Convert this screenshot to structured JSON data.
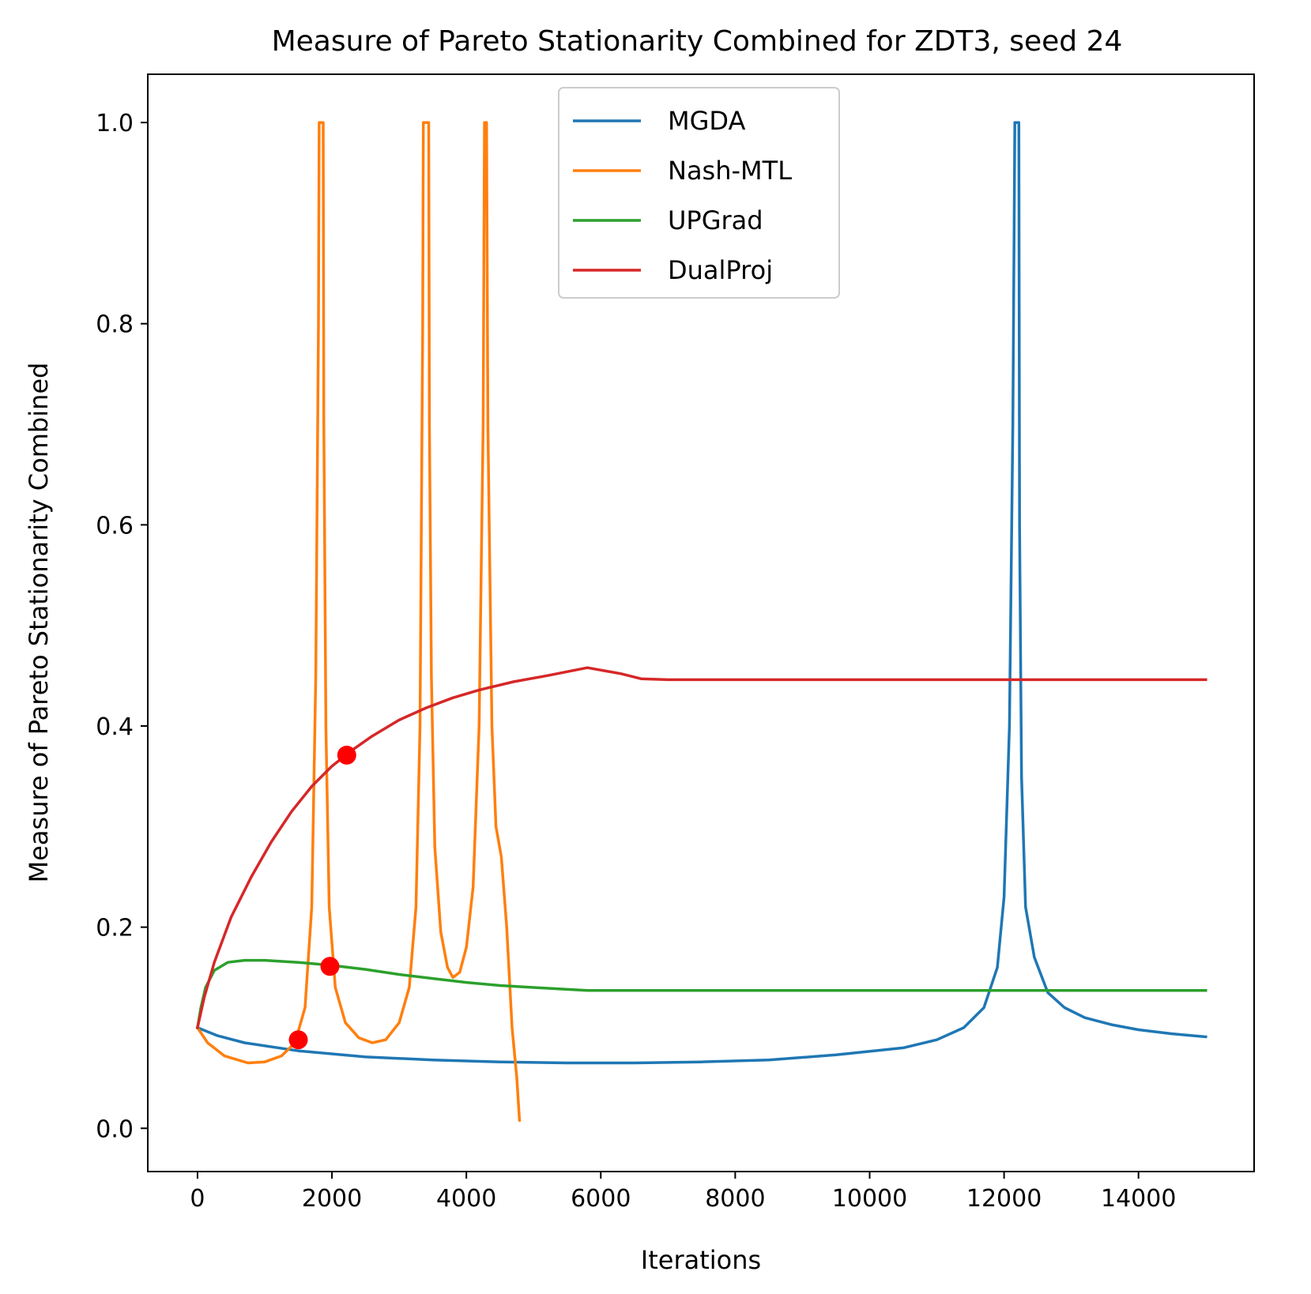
{
  "chart_data": {
    "type": "line",
    "title": "Measure of Pareto Stationarity Combined for ZDT3, seed 24",
    "xlabel": "Iterations",
    "ylabel": "Measure of Pareto Stationarity Combined",
    "xlim": [
      -740,
      15720
    ],
    "ylim": [
      -0.043,
      1.048
    ],
    "xticks": [
      0,
      2000,
      4000,
      6000,
      8000,
      10000,
      12000,
      14000
    ],
    "xtick_labels": [
      "0",
      "2000",
      "4000",
      "6000",
      "8000",
      "10000",
      "12000",
      "14000"
    ],
    "yticks": [
      0.0,
      0.2,
      0.4,
      0.6,
      0.8,
      1.0
    ],
    "ytick_labels": [
      "0.0",
      "0.2",
      "0.4",
      "0.6",
      "0.8",
      "1.0"
    ],
    "grid": false,
    "legend_position": "upper center",
    "series": [
      {
        "name": "MGDA",
        "color": "#1f77b4",
        "points": [
          [
            0,
            0.1
          ],
          [
            300,
            0.092
          ],
          [
            700,
            0.085
          ],
          [
            1500,
            0.077
          ],
          [
            2500,
            0.071
          ],
          [
            3500,
            0.068
          ],
          [
            4500,
            0.066
          ],
          [
            5500,
            0.065
          ],
          [
            6500,
            0.065
          ],
          [
            7500,
            0.066
          ],
          [
            8500,
            0.068
          ],
          [
            9500,
            0.073
          ],
          [
            10500,
            0.08
          ],
          [
            11000,
            0.088
          ],
          [
            11400,
            0.1
          ],
          [
            11700,
            0.12
          ],
          [
            11900,
            0.16
          ],
          [
            12000,
            0.23
          ],
          [
            12080,
            0.4
          ],
          [
            12130,
            0.7
          ],
          [
            12160,
            1.0
          ],
          [
            12220,
            1.0
          ],
          [
            12230,
            0.6
          ],
          [
            12260,
            0.35
          ],
          [
            12320,
            0.22
          ],
          [
            12450,
            0.17
          ],
          [
            12650,
            0.135
          ],
          [
            12900,
            0.12
          ],
          [
            13200,
            0.11
          ],
          [
            13600,
            0.103
          ],
          [
            14000,
            0.098
          ],
          [
            14500,
            0.094
          ],
          [
            15000,
            0.091
          ]
        ]
      },
      {
        "name": "Nash-MTL",
        "color": "#ff7f0e",
        "points": [
          [
            0,
            0.1
          ],
          [
            150,
            0.085
          ],
          [
            400,
            0.072
          ],
          [
            750,
            0.065
          ],
          [
            1000,
            0.066
          ],
          [
            1250,
            0.072
          ],
          [
            1450,
            0.085
          ],
          [
            1600,
            0.12
          ],
          [
            1700,
            0.22
          ],
          [
            1760,
            0.45
          ],
          [
            1800,
            0.8
          ],
          [
            1810,
            1.0
          ],
          [
            1870,
            1.0
          ],
          [
            1880,
            0.7
          ],
          [
            1910,
            0.4
          ],
          [
            1960,
            0.22
          ],
          [
            2050,
            0.14
          ],
          [
            2200,
            0.105
          ],
          [
            2400,
            0.09
          ],
          [
            2600,
            0.085
          ],
          [
            2800,
            0.088
          ],
          [
            3000,
            0.105
          ],
          [
            3150,
            0.14
          ],
          [
            3250,
            0.22
          ],
          [
            3310,
            0.4
          ],
          [
            3350,
            0.8
          ],
          [
            3360,
            1.0
          ],
          [
            3440,
            1.0
          ],
          [
            3450,
            0.7
          ],
          [
            3480,
            0.45
          ],
          [
            3530,
            0.28
          ],
          [
            3620,
            0.195
          ],
          [
            3720,
            0.16
          ],
          [
            3800,
            0.15
          ],
          [
            3900,
            0.155
          ],
          [
            4000,
            0.18
          ],
          [
            4100,
            0.24
          ],
          [
            4190,
            0.4
          ],
          [
            4250,
            0.7
          ],
          [
            4270,
            1.0
          ],
          [
            4300,
            1.0
          ],
          [
            4320,
            0.7
          ],
          [
            4380,
            0.4
          ],
          [
            4440,
            0.3
          ],
          [
            4520,
            0.27
          ],
          [
            4600,
            0.2
          ],
          [
            4680,
            0.1
          ],
          [
            4750,
            0.05
          ],
          [
            4790,
            0.008
          ]
        ]
      },
      {
        "name": "UPGrad",
        "color": "#2ca02c",
        "points": [
          [
            0,
            0.1
          ],
          [
            50,
            0.12
          ],
          [
            120,
            0.14
          ],
          [
            250,
            0.157
          ],
          [
            450,
            0.165
          ],
          [
            700,
            0.167
          ],
          [
            1000,
            0.167
          ],
          [
            1500,
            0.165
          ],
          [
            2000,
            0.162
          ],
          [
            2500,
            0.158
          ],
          [
            3000,
            0.153
          ],
          [
            3500,
            0.149
          ],
          [
            4000,
            0.145
          ],
          [
            4500,
            0.142
          ],
          [
            5000,
            0.14
          ],
          [
            5800,
            0.137
          ],
          [
            7000,
            0.137
          ],
          [
            8000,
            0.137
          ],
          [
            9000,
            0.137
          ],
          [
            10000,
            0.137
          ],
          [
            11000,
            0.137
          ],
          [
            12000,
            0.137
          ],
          [
            13000,
            0.137
          ],
          [
            14000,
            0.137
          ],
          [
            15000,
            0.137
          ]
        ]
      },
      {
        "name": "DualProj",
        "color": "#d62728",
        "points": [
          [
            0,
            0.1
          ],
          [
            100,
            0.13
          ],
          [
            250,
            0.165
          ],
          [
            500,
            0.21
          ],
          [
            800,
            0.25
          ],
          [
            1100,
            0.285
          ],
          [
            1400,
            0.315
          ],
          [
            1700,
            0.34
          ],
          [
            2000,
            0.36
          ],
          [
            2300,
            0.376
          ],
          [
            2600,
            0.39
          ],
          [
            3000,
            0.406
          ],
          [
            3400,
            0.418
          ],
          [
            3800,
            0.428
          ],
          [
            4200,
            0.436
          ],
          [
            4700,
            0.444
          ],
          [
            5200,
            0.45
          ],
          [
            5800,
            0.458
          ],
          [
            6300,
            0.452
          ],
          [
            6600,
            0.447
          ],
          [
            7000,
            0.446
          ],
          [
            8000,
            0.446
          ],
          [
            9000,
            0.446
          ],
          [
            10000,
            0.446
          ],
          [
            11000,
            0.446
          ],
          [
            12000,
            0.446
          ],
          [
            13000,
            0.446
          ],
          [
            14000,
            0.446
          ],
          [
            15000,
            0.446
          ]
        ]
      }
    ],
    "markers": [
      {
        "x": 1500,
        "y": 0.088,
        "color": "#ff0000"
      },
      {
        "x": 1970,
        "y": 0.161,
        "color": "#ff0000"
      },
      {
        "x": 2220,
        "y": 0.371,
        "color": "#ff0000"
      }
    ]
  }
}
